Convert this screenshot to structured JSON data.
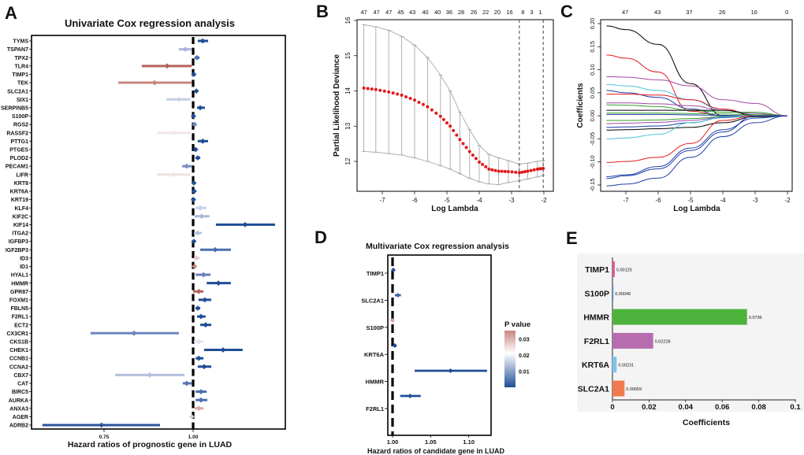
{
  "panel_labels": [
    "A",
    "B",
    "C",
    "D",
    "E"
  ],
  "chart_data": [
    {
      "id": "A",
      "type": "forest",
      "title": "Univariate Cox regression analysis",
      "xlabel": "Hazard ratios of prognostic gene in LUAD",
      "xticks": [
        0.75,
        1.0
      ],
      "xtick_labels": [
        "0.75",
        "1.00"
      ],
      "reference": 1.0,
      "rows": [
        {
          "gene": "TYMS",
          "hr": 1.027,
          "lo": 1.013,
          "hi": 1.042,
          "color": "#1f4e96"
        },
        {
          "gene": "TSPAN7",
          "hr": 0.978,
          "lo": 0.96,
          "hi": 0.996,
          "color": "#aab8d8"
        },
        {
          "gene": "TPX2",
          "hr": 1.011,
          "lo": 1.004,
          "hi": 1.018,
          "color": "#4a6fae"
        },
        {
          "gene": "TLR4",
          "hr": 0.927,
          "lo": 0.856,
          "hi": 0.996,
          "color": "#b5625c"
        },
        {
          "gene": "TIMP1",
          "hr": 1.002,
          "lo": 0.999,
          "hi": 1.004,
          "color": "#1f4e96"
        },
        {
          "gene": "TEK",
          "hr": 0.892,
          "lo": 0.79,
          "hi": 0.996,
          "color": "#c98580"
        },
        {
          "gene": "SLC2A1",
          "hr": 1.009,
          "lo": 1.004,
          "hi": 1.013,
          "color": "#1f4e96"
        },
        {
          "gene": "SIX1",
          "hr": 0.96,
          "lo": 0.925,
          "hi": 0.993,
          "color": "#c6d0e6"
        },
        {
          "gene": "SERPINB5",
          "hr": 1.02,
          "lo": 1.011,
          "hi": 1.033,
          "color": "#1f4e96"
        },
        {
          "gene": "S100P",
          "hr": 1.001,
          "lo": 0.998,
          "hi": 1.004,
          "color": "#1f4e96"
        },
        {
          "gene": "RGS2",
          "hr": 1.004,
          "lo": 1.001,
          "hi": 1.008,
          "color": "#7086bd"
        },
        {
          "gene": "RASSF2",
          "hr": 0.947,
          "lo": 0.9,
          "hi": 0.993,
          "color": "#f2e6e6"
        },
        {
          "gene": "PTTG1",
          "hr": 1.027,
          "lo": 1.013,
          "hi": 1.042,
          "color": "#1f4e96"
        },
        {
          "gene": "PTGES",
          "hr": 1.007,
          "lo": 1.002,
          "hi": 1.011,
          "color": "#1f4e96"
        },
        {
          "gene": "PLOD2",
          "hr": 1.013,
          "lo": 1.007,
          "hi": 1.02,
          "color": "#1f4e96"
        },
        {
          "gene": "PECAM1",
          "hr": 0.982,
          "lo": 0.969,
          "hi": 0.996,
          "color": "#7c8fc0"
        },
        {
          "gene": "LIFR",
          "hr": 0.945,
          "lo": 0.898,
          "hi": 0.993,
          "color": "#f0e2e2"
        },
        {
          "gene": "KRT8",
          "hr": 1.002,
          "lo": 0.998,
          "hi": 1.007,
          "color": "#1f4e96"
        },
        {
          "gene": "KRT6A",
          "hr": 1.003,
          "lo": 1.0,
          "hi": 1.007,
          "color": "#1f4e96"
        },
        {
          "gene": "KRT19",
          "hr": 1.001,
          "lo": 0.998,
          "hi": 1.004,
          "color": "#1f4e96"
        },
        {
          "gene": "KLF4",
          "hr": 1.02,
          "lo": 1.007,
          "hi": 1.038,
          "color": "#c6d0e6"
        },
        {
          "gene": "KIF2C",
          "hr": 1.024,
          "lo": 1.004,
          "hi": 1.046,
          "color": "#aab8d8"
        },
        {
          "gene": "KIF14",
          "hr": 1.146,
          "lo": 1.064,
          "hi": 1.23,
          "color": "#1f4e96"
        },
        {
          "gene": "ITGA2",
          "hr": 1.013,
          "lo": 1.002,
          "hi": 1.024,
          "color": "#b4c0dd"
        },
        {
          "gene": "IGFBP3",
          "hr": 1.002,
          "lo": 1.0,
          "hi": 1.007,
          "color": "#1f4e96"
        },
        {
          "gene": "IGF2BP3",
          "hr": 1.062,
          "lo": 1.02,
          "hi": 1.106,
          "color": "#4a6fae"
        },
        {
          "gene": "ID3",
          "hr": 1.009,
          "lo": 1.002,
          "hi": 1.018,
          "color": "#e8c8c6"
        },
        {
          "gene": "ID1",
          "hr": 1.004,
          "lo": 1.0,
          "hi": 1.007,
          "color": "#c98580"
        },
        {
          "gene": "HYAL1",
          "hr": 1.029,
          "lo": 1.007,
          "hi": 1.049,
          "color": "#6880b8"
        },
        {
          "gene": "HMMR",
          "hr": 1.071,
          "lo": 1.038,
          "hi": 1.106,
          "color": "#1f4e96"
        },
        {
          "gene": "GPR87",
          "hr": 1.016,
          "lo": 1.0,
          "hi": 1.029,
          "color": "#b5625c"
        },
        {
          "gene": "FOXM1",
          "hr": 1.033,
          "lo": 1.015,
          "hi": 1.051,
          "color": "#1f4e96"
        },
        {
          "gene": "FBLN5",
          "hr": 1.013,
          "lo": 1.007,
          "hi": 1.02,
          "color": "#1f4e96"
        },
        {
          "gene": "F2RL1",
          "hr": 1.022,
          "lo": 1.011,
          "hi": 1.035,
          "color": "#1f4e96"
        },
        {
          "gene": "ECT2",
          "hr": 1.035,
          "lo": 1.02,
          "hi": 1.051,
          "color": "#1f4e96"
        },
        {
          "gene": "CX3CR1",
          "hr": 0.834,
          "lo": 0.712,
          "hi": 0.96,
          "color": "#6e86bd"
        },
        {
          "gene": "CKS1B",
          "hr": 1.016,
          "lo": 1.002,
          "hi": 1.029,
          "color": "#dde3ef"
        },
        {
          "gene": "CHEK1",
          "hr": 1.084,
          "lo": 1.031,
          "hi": 1.139,
          "color": "#1f4e96"
        },
        {
          "gene": "CCNB1",
          "hr": 1.016,
          "lo": 1.007,
          "hi": 1.029,
          "color": "#1f4e96"
        },
        {
          "gene": "CCNA2",
          "hr": 1.031,
          "lo": 1.013,
          "hi": 1.051,
          "color": "#1f4e96"
        },
        {
          "gene": "CBX7",
          "hr": 0.878,
          "lo": 0.781,
          "hi": 0.976,
          "color": "#b4c0dd"
        },
        {
          "gene": "CAT",
          "hr": 0.982,
          "lo": 0.971,
          "hi": 0.996,
          "color": "#5a76b4"
        },
        {
          "gene": "BIRC5",
          "hr": 1.022,
          "lo": 1.007,
          "hi": 1.038,
          "color": "#4a6fae"
        },
        {
          "gene": "AURKA",
          "hr": 1.022,
          "lo": 1.007,
          "hi": 1.04,
          "color": "#4a6fae"
        },
        {
          "gene": "ANXA3",
          "hr": 1.016,
          "lo": 1.004,
          "hi": 1.029,
          "color": "#dcaaa6"
        },
        {
          "gene": "AGER",
          "hr": 0.996,
          "lo": 0.991,
          "hi": 1.0,
          "color": "#ccd4ea"
        },
        {
          "gene": "ADRB2",
          "hr": 0.743,
          "lo": 0.577,
          "hi": 0.907,
          "color": "#2c549c"
        }
      ]
    },
    {
      "id": "B",
      "type": "line",
      "xlabel": "Log Lambda",
      "ylabel": "Partial Likelihood Deviance",
      "xlim": [
        -7.78,
        -1.7
      ],
      "ylim": [
        11.15,
        16.02
      ],
      "xticks": [
        -7,
        -6,
        -5,
        -4,
        -3,
        -2
      ],
      "yticks": [
        12,
        13,
        14,
        15,
        16
      ],
      "top_labels": [
        "47",
        "47",
        "47",
        "45",
        "43",
        "40",
        "40",
        "36",
        "28",
        "26",
        "22",
        "20",
        "16",
        "8",
        "3",
        "1"
      ],
      "top_at": [
        -7.57,
        -7.18,
        -6.8,
        -6.43,
        -6.07,
        -5.67,
        -5.29,
        -4.93,
        -4.56,
        -4.17,
        -3.8,
        -3.44,
        -3.06,
        -2.65,
        -2.38,
        -2.11
      ],
      "vlines": [
        -2.76,
        -2.02
      ],
      "x": [
        -7.57,
        -7.2,
        -6.8,
        -6.4,
        -6.0,
        -5.6,
        -5.2,
        -4.9,
        -4.6,
        -4.3,
        -4.0,
        -3.7,
        -3.4,
        -3.1,
        -2.76,
        -2.5,
        -2.2,
        -2.02
      ],
      "mean": [
        14.08,
        14.04,
        13.97,
        13.88,
        13.74,
        13.55,
        13.28,
        13.0,
        12.62,
        12.28,
        11.98,
        11.78,
        11.72,
        11.71,
        11.68,
        11.72,
        11.78,
        11.8
      ],
      "upper": [
        15.88,
        15.82,
        15.72,
        15.55,
        15.3,
        14.95,
        14.45,
        14.0,
        13.4,
        12.9,
        12.45,
        12.2,
        12.1,
        12.02,
        11.92,
        11.95,
        12.0,
        12.02
      ],
      "lower": [
        12.28,
        12.26,
        12.22,
        12.18,
        12.1,
        12.0,
        11.88,
        11.78,
        11.65,
        11.52,
        11.42,
        11.36,
        11.34,
        11.4,
        11.45,
        11.5,
        11.56,
        11.6
      ],
      "point_color": "#e31a1c",
      "bar_color": "#a8a8a8"
    },
    {
      "id": "C",
      "type": "line",
      "xlabel": "Log Lambda",
      "ylabel": "Coefficients",
      "xlim": [
        -7.78,
        -1.85
      ],
      "ylim": [
        -0.162,
        0.208
      ],
      "xticks": [
        -7,
        -6,
        -5,
        -4,
        -3,
        -2
      ],
      "yticks": [
        -0.15,
        -0.1,
        -0.05,
        0.0,
        0.05,
        0.1,
        0.15,
        0.2
      ],
      "ytick_labels": [
        "-0.15",
        "-0.10",
        "-0.05",
        "0.00",
        "0.05",
        "0.10",
        "0.15",
        "0.20"
      ],
      "top_labels": [
        "47",
        "43",
        "37",
        "26",
        "16",
        "0"
      ],
      "top_at": [
        -7.02,
        -6.02,
        -5.04,
        -4.02,
        -3.03,
        -2.02
      ],
      "x": [
        -7.6,
        -7,
        -6,
        -5,
        -4,
        -3,
        -2
      ],
      "series": [
        {
          "color": "#000000",
          "values": [
            0.195,
            0.187,
            0.155,
            0.07,
            0,
            0,
            0
          ]
        },
        {
          "color": "#e31a1c",
          "values": [
            0.132,
            0.125,
            0.095,
            0.01,
            0,
            0,
            0
          ]
        },
        {
          "color": "#a349a4",
          "values": [
            0.085,
            0.084,
            0.078,
            0.065,
            0.035,
            0.027,
            0
          ]
        },
        {
          "color": "#4cc3d9",
          "values": [
            0.068,
            0.065,
            0.055,
            0.035,
            0.012,
            0.005,
            0
          ]
        },
        {
          "color": "#1f3fa8",
          "values": [
            0.055,
            0.05,
            0.04,
            0.015,
            0,
            0,
            0
          ]
        },
        {
          "color": "#e31a1c",
          "values": [
            0.047,
            0.047,
            0.045,
            0.035,
            0.015,
            0,
            0
          ]
        },
        {
          "color": "#a349a4",
          "values": [
            0.028,
            0.028,
            0.026,
            0.022,
            0.012,
            0.005,
            0
          ]
        },
        {
          "color": "#33a02c",
          "values": [
            0.024,
            0.023,
            0.02,
            0.012,
            0.008,
            0.008,
            0
          ]
        },
        {
          "color": "#000000",
          "values": [
            0.012,
            0.012,
            0.012,
            0.012,
            0.012,
            0.002,
            0
          ]
        },
        {
          "color": "#33a02c",
          "values": [
            0.006,
            0.006,
            0.006,
            0.005,
            0.004,
            0.002,
            0
          ]
        },
        {
          "color": "#1f3fa8",
          "values": [
            0.003,
            0.003,
            0.003,
            0.002,
            0.001,
            0,
            0
          ]
        },
        {
          "color": "#33a02c",
          "values": [
            -0.01,
            -0.01,
            -0.009,
            -0.006,
            -0.002,
            0,
            0
          ]
        },
        {
          "color": "#a349a4",
          "values": [
            -0.017,
            -0.016,
            -0.014,
            -0.01,
            -0.003,
            0,
            0
          ]
        },
        {
          "color": "#1f3fa8",
          "values": [
            -0.025,
            -0.024,
            -0.022,
            -0.015,
            -0.004,
            0,
            0
          ]
        },
        {
          "color": "#000000",
          "values": [
            -0.031,
            -0.03,
            -0.028,
            -0.025,
            -0.015,
            -0.002,
            0
          ]
        },
        {
          "color": "#4cc3d9",
          "values": [
            -0.05,
            -0.048,
            -0.04,
            -0.015,
            -0.003,
            0,
            0
          ]
        },
        {
          "color": "#e31a1c",
          "values": [
            -0.101,
            -0.099,
            -0.09,
            -0.06,
            -0.01,
            0,
            0
          ]
        },
        {
          "color": "#1f3fa8",
          "values": [
            -0.132,
            -0.128,
            -0.11,
            -0.07,
            -0.03,
            -0.005,
            0
          ]
        },
        {
          "color": "#1f3fa8",
          "values": [
            -0.136,
            -0.13,
            -0.115,
            -0.075,
            -0.035,
            0,
            0
          ]
        },
        {
          "color": "#1f3fa8",
          "values": [
            -0.152,
            -0.148,
            -0.135,
            -0.09,
            -0.045,
            -0.015,
            0
          ]
        }
      ]
    },
    {
      "id": "D",
      "type": "forest",
      "title": "Multivariate Cox regression analysis",
      "xlabel": "Hazard ratios of candidate gene in LUAD",
      "xlim": [
        0.994,
        1.129
      ],
      "xticks": [
        1.0,
        1.05,
        1.1
      ],
      "xtick_labels": [
        "1.00",
        "1.05",
        "1.10"
      ],
      "reference": 1.0,
      "rows": [
        {
          "gene": "TIMP1",
          "hr": 1.001,
          "lo": 0.999,
          "hi": 1.003,
          "color": "#1f4e96"
        },
        {
          "gene": "SLC2A1",
          "hr": 1.007,
          "lo": 1.003,
          "hi": 1.011,
          "color": "#3f64a8"
        },
        {
          "gene": "S100P",
          "hr": 1.0,
          "lo": 0.999,
          "hi": 1.001,
          "color": "#d9a9a5"
        },
        {
          "gene": "KRT6A",
          "hr": 1.003,
          "lo": 1.001,
          "hi": 1.005,
          "color": "#1f4e96"
        },
        {
          "gene": "HMMR",
          "hr": 1.076,
          "lo": 1.029,
          "hi": 1.124,
          "color": "#1f4e96"
        },
        {
          "gene": "F2RL1",
          "hr": 1.023,
          "lo": 1.01,
          "hi": 1.037,
          "color": "#1f4e96"
        }
      ],
      "legend": {
        "title": "P value",
        "range": [
          0,
          0.035
        ],
        "ticks": [
          0.03,
          0.02,
          0.01
        ],
        "tick_labels": [
          "0.03",
          "0.02",
          "0.01"
        ],
        "colors": [
          "#1f4e96",
          "#ffffff",
          "#c98580"
        ]
      }
    },
    {
      "id": "E",
      "type": "bar",
      "xlabel": "Coefficients",
      "xlim": [
        0,
        0.1
      ],
      "xticks": [
        0,
        0.02,
        0.04,
        0.06,
        0.08,
        0.1
      ],
      "xtick_labels": [
        "0",
        "0.02",
        "0.04",
        "0.06",
        "0.08",
        "0.1"
      ],
      "categories": [
        "TIMP1",
        "S100P",
        "HMMR",
        "F2RL1",
        "KRT6A",
        "SLC2A1"
      ],
      "values": [
        0.00125,
        0.00049,
        0.0736,
        0.02228,
        0.00231,
        0.00659
      ],
      "value_labels": [
        "0.00125",
        "0.00049",
        "0.0736",
        "0.02228",
        "0.00231",
        "0.00659"
      ],
      "colors": [
        "#e5549a",
        "#4f8fd6",
        "#4db33d",
        "#b86cb0",
        "#7ec4ec",
        "#ee7a50"
      ]
    }
  ]
}
